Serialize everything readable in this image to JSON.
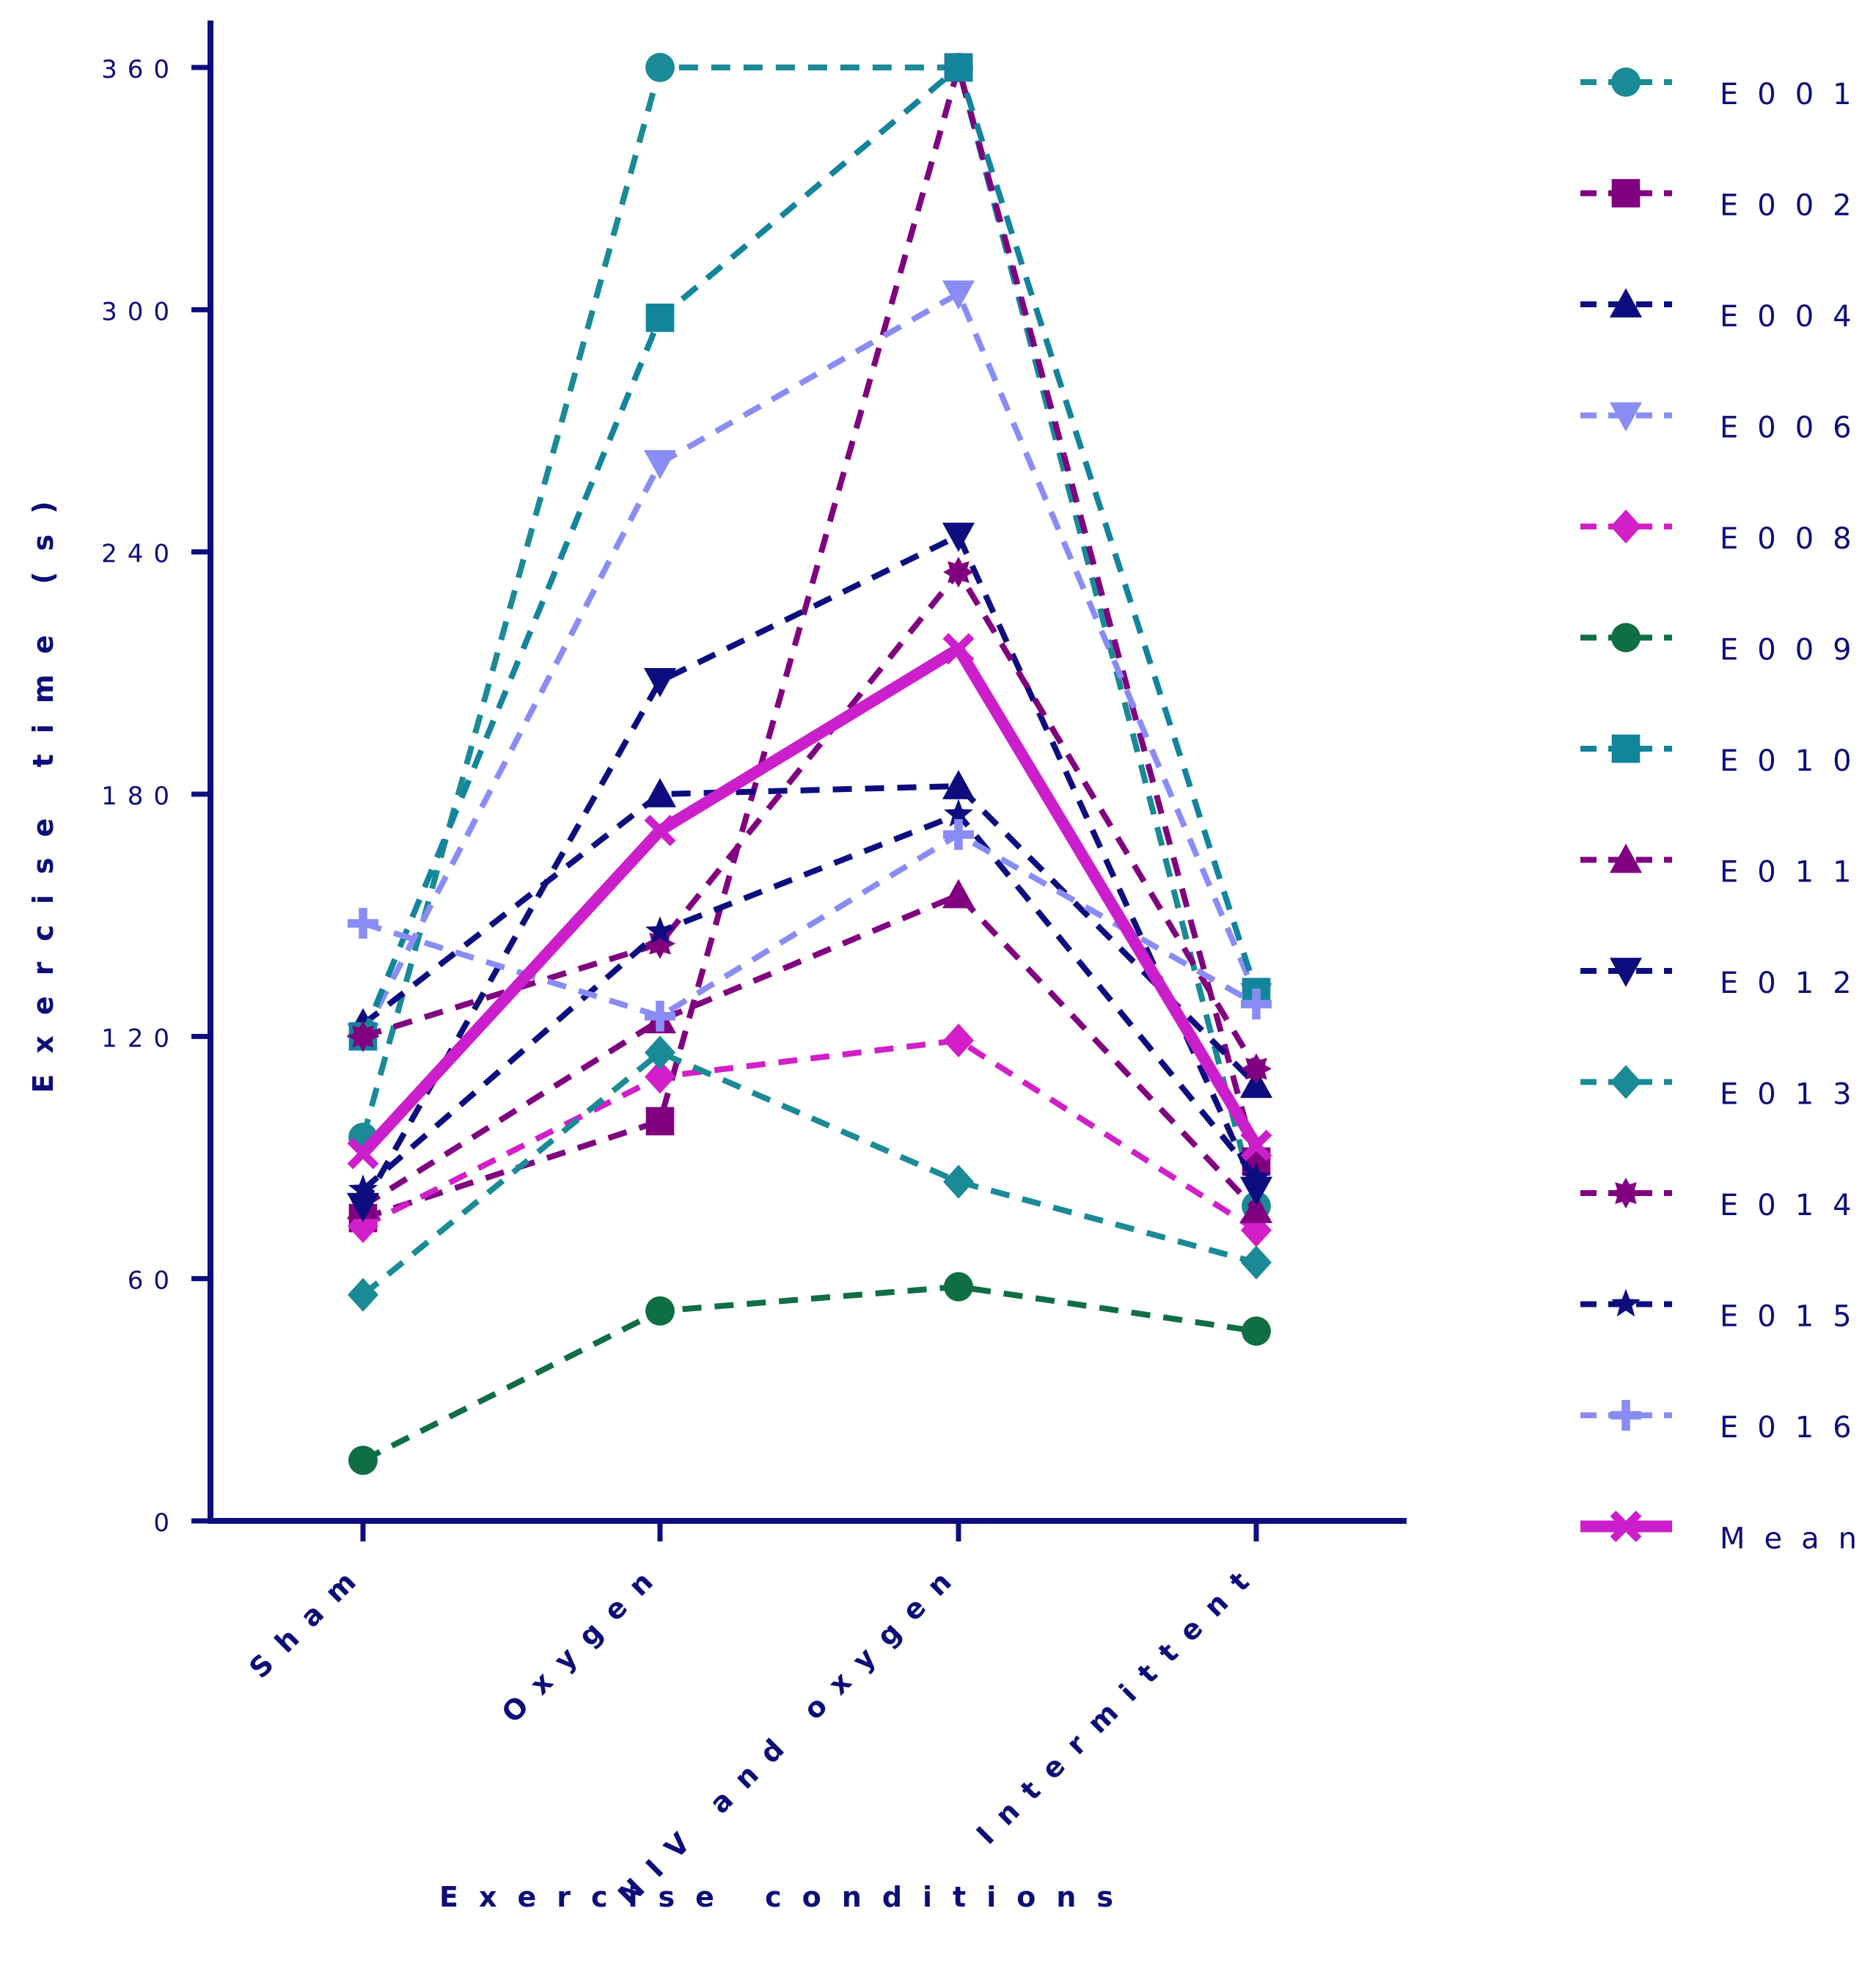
{
  "chart_data": {
    "type": "line",
    "title": "",
    "xlabel": "Exercise conditions",
    "ylabel": "Exercise time (s)",
    "categories": [
      "Sham",
      "Oxygen",
      "NIV and oxygen",
      "Intermittent"
    ],
    "ylim": [
      0,
      360
    ],
    "yticks": [
      "0",
      "60",
      "120",
      "180",
      "240",
      "300",
      "360"
    ],
    "grid": false,
    "legend_position": "right",
    "series": [
      {
        "name": "E001",
        "values": [
          95,
          360,
          360,
          78
        ],
        "color": "#1a8a96",
        "marker": "circle",
        "style": "dashed"
      },
      {
        "name": "E002",
        "values": [
          75,
          99,
          360,
          89
        ],
        "color": "#800080",
        "marker": "square",
        "style": "dashed"
      },
      {
        "name": "E004",
        "values": [
          123,
          180,
          182,
          108
        ],
        "color": "#0d0d80",
        "marker": "triangle-up",
        "style": "dashed"
      },
      {
        "name": "E006",
        "values": [
          120,
          262,
          304,
          130
        ],
        "color": "#8a8cf5",
        "marker": "triangle-down",
        "style": "dashed"
      },
      {
        "name": "E008",
        "values": [
          73,
          110,
          119,
          72
        ],
        "color": "#d21fc8",
        "marker": "diamond",
        "style": "dashed"
      },
      {
        "name": "E009",
        "values": [
          15,
          52,
          58,
          47
        ],
        "color": "#0f6e43",
        "marker": "circle",
        "style": "dashed"
      },
      {
        "name": "E010",
        "values": [
          120,
          298,
          360,
          131
        ],
        "color": "#12849c",
        "marker": "square",
        "style": "dashed"
      },
      {
        "name": "E011",
        "values": [
          78,
          124,
          155,
          77
        ],
        "color": "#800080",
        "marker": "triangle-up",
        "style": "dashed"
      },
      {
        "name": "E012",
        "values": [
          78,
          208,
          244,
          82
        ],
        "color": "#0d0d80",
        "marker": "triangle-down",
        "style": "dashed"
      },
      {
        "name": "E013",
        "values": [
          56,
          116,
          84,
          64
        ],
        "color": "#1a8a96",
        "marker": "diamond",
        "style": "dashed"
      },
      {
        "name": "E014",
        "values": [
          120,
          143,
          235,
          112
        ],
        "color": "#800080",
        "marker": "star8",
        "style": "dashed"
      },
      {
        "name": "E015",
        "values": [
          82,
          146,
          175,
          85
        ],
        "color": "#0d0d80",
        "marker": "star5",
        "style": "dashed"
      },
      {
        "name": "E016",
        "values": [
          148,
          125,
          170,
          128
        ],
        "color": "#8a8cf5",
        "marker": "plus",
        "style": "dashed"
      },
      {
        "name": "Mean",
        "values": [
          91,
          171,
          216,
          93
        ],
        "color": "#cc1fcc",
        "marker": "cross",
        "style": "solid"
      }
    ]
  }
}
